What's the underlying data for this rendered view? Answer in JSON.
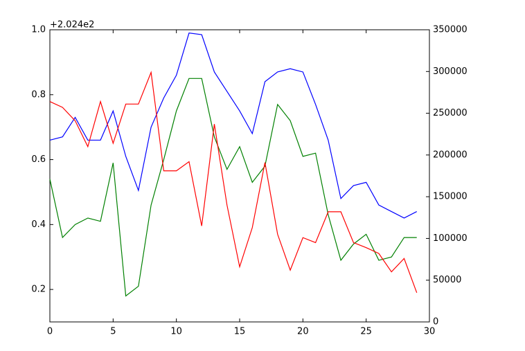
{
  "chart_data": {
    "type": "line",
    "y_offset_text": "+2.024e2",
    "x": [
      0,
      1,
      2,
      3,
      4,
      5,
      6,
      7,
      8,
      9,
      10,
      11,
      12,
      13,
      14,
      15,
      16,
      17,
      18,
      19,
      20,
      21,
      22,
      23,
      24,
      25,
      26,
      27,
      28,
      29
    ],
    "series": [
      {
        "color": "#0000ff",
        "values": [
          0.66,
          0.67,
          0.73,
          0.66,
          0.66,
          0.75,
          0.61,
          0.505,
          0.7,
          0.79,
          0.86,
          0.99,
          0.985,
          0.87,
          0.81,
          0.75,
          0.68,
          0.84,
          0.87,
          0.88,
          0.87,
          0.77,
          0.66,
          0.48,
          0.52,
          0.53,
          0.46,
          0.44,
          0.42,
          0.44
        ]
      },
      {
        "color": "#008000",
        "values": [
          0.54,
          0.36,
          0.4,
          0.42,
          0.41,
          0.59,
          0.18,
          0.21,
          0.46,
          0.6,
          0.75,
          0.85,
          0.85,
          0.67,
          0.57,
          0.64,
          0.53,
          0.58,
          0.77,
          0.72,
          0.61,
          0.62,
          0.43,
          0.29,
          0.34,
          0.37,
          0.29,
          0.3,
          0.36,
          0.36
        ]
      },
      {
        "color": "#ff0000",
        "axis": "y2",
        "values": [
          264000,
          257000,
          241000,
          210000,
          264000,
          214000,
          261000,
          261000,
          299000,
          181000,
          181000,
          192000,
          115000,
          237000,
          140000,
          66000,
          113000,
          191000,
          105000,
          62000,
          101000,
          95000,
          132000,
          132000,
          95000,
          89000,
          82000,
          60000,
          76000,
          35000
        ]
      }
    ],
    "xlim": [
      0,
      30
    ],
    "xticks": [
      0,
      5,
      10,
      15,
      20,
      25,
      30
    ],
    "ylim": [
      0.1,
      1.0
    ],
    "yticks": [
      0.2,
      0.4,
      0.6,
      0.8,
      {
        "value": 1.0,
        "label": "1.0"
      }
    ],
    "y2lim": [
      0,
      350000
    ],
    "y2ticks": [
      0,
      50000,
      100000,
      150000,
      200000,
      250000,
      300000,
      350000
    ]
  }
}
